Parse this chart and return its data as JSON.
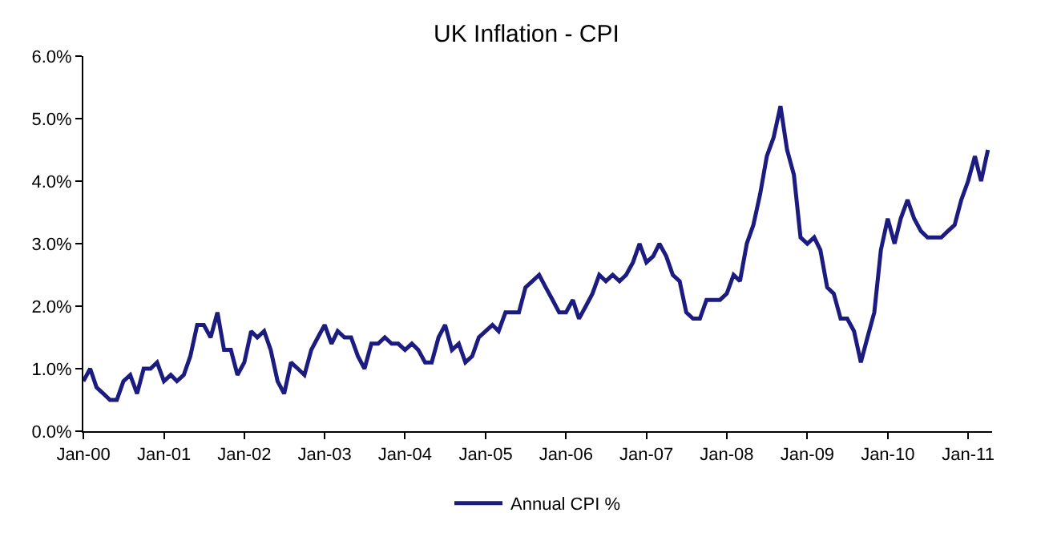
{
  "chart_data": {
    "type": "line",
    "title": "UK Inflation - CPI",
    "x": [
      "2000-01",
      "2000-02",
      "2000-03",
      "2000-04",
      "2000-05",
      "2000-06",
      "2000-07",
      "2000-08",
      "2000-09",
      "2000-10",
      "2000-11",
      "2000-12",
      "2001-01",
      "2001-02",
      "2001-03",
      "2001-04",
      "2001-05",
      "2001-06",
      "2001-07",
      "2001-08",
      "2001-09",
      "2001-10",
      "2001-11",
      "2001-12",
      "2002-01",
      "2002-02",
      "2002-03",
      "2002-04",
      "2002-05",
      "2002-06",
      "2002-07",
      "2002-08",
      "2002-09",
      "2002-10",
      "2002-11",
      "2002-12",
      "2003-01",
      "2003-02",
      "2003-03",
      "2003-04",
      "2003-05",
      "2003-06",
      "2003-07",
      "2003-08",
      "2003-09",
      "2003-10",
      "2003-11",
      "2003-12",
      "2004-01",
      "2004-02",
      "2004-03",
      "2004-04",
      "2004-05",
      "2004-06",
      "2004-07",
      "2004-08",
      "2004-09",
      "2004-10",
      "2004-11",
      "2004-12",
      "2005-01",
      "2005-02",
      "2005-03",
      "2005-04",
      "2005-05",
      "2005-06",
      "2005-07",
      "2005-08",
      "2005-09",
      "2005-10",
      "2005-11",
      "2005-12",
      "2006-01",
      "2006-02",
      "2006-03",
      "2006-04",
      "2006-05",
      "2006-06",
      "2006-07",
      "2006-08",
      "2006-09",
      "2006-10",
      "2006-11",
      "2006-12",
      "2007-01",
      "2007-02",
      "2007-03",
      "2007-04",
      "2007-05",
      "2007-06",
      "2007-07",
      "2007-08",
      "2007-09",
      "2007-10",
      "2007-11",
      "2007-12",
      "2008-01",
      "2008-02",
      "2008-03",
      "2008-04",
      "2008-05",
      "2008-06",
      "2008-07",
      "2008-08",
      "2008-09",
      "2008-10",
      "2008-11",
      "2008-12",
      "2009-01",
      "2009-02",
      "2009-03",
      "2009-04",
      "2009-05",
      "2009-06",
      "2009-07",
      "2009-08",
      "2009-09",
      "2009-10",
      "2009-11",
      "2009-12",
      "2010-01",
      "2010-02",
      "2010-03",
      "2010-04",
      "2010-05",
      "2010-06",
      "2010-07",
      "2010-08",
      "2010-09",
      "2010-10",
      "2010-11",
      "2010-12",
      "2011-01",
      "2011-02",
      "2011-03",
      "2011-04"
    ],
    "series": [
      {
        "name": "Annual CPI %",
        "color": "#1c1c80",
        "values": [
          0.8,
          1.0,
          0.7,
          0.6,
          0.5,
          0.5,
          0.8,
          0.9,
          0.6,
          1.0,
          1.0,
          1.1,
          0.8,
          0.9,
          0.8,
          0.9,
          1.2,
          1.7,
          1.7,
          1.5,
          1.9,
          1.3,
          1.3,
          0.9,
          1.1,
          1.6,
          1.5,
          1.6,
          1.3,
          0.8,
          0.6,
          1.1,
          1.0,
          0.9,
          1.3,
          1.5,
          1.7,
          1.4,
          1.6,
          1.5,
          1.5,
          1.2,
          1.0,
          1.4,
          1.4,
          1.5,
          1.4,
          1.4,
          1.3,
          1.4,
          1.3,
          1.1,
          1.1,
          1.5,
          1.7,
          1.3,
          1.4,
          1.1,
          1.2,
          1.5,
          1.6,
          1.7,
          1.6,
          1.9,
          1.9,
          1.9,
          2.3,
          2.4,
          2.5,
          2.3,
          2.1,
          1.9,
          1.9,
          2.1,
          1.8,
          2.0,
          2.2,
          2.5,
          2.4,
          2.5,
          2.4,
          2.5,
          2.7,
          3.0,
          2.7,
          2.8,
          3.0,
          2.8,
          2.5,
          2.4,
          1.9,
          1.8,
          1.8,
          2.1,
          2.1,
          2.1,
          2.2,
          2.5,
          2.4,
          3.0,
          3.3,
          3.8,
          4.4,
          4.7,
          5.2,
          4.5,
          4.1,
          3.1,
          3.0,
          3.1,
          2.9,
          2.3,
          2.2,
          1.8,
          1.8,
          1.6,
          1.1,
          1.5,
          1.9,
          2.9,
          3.4,
          3.0,
          3.4,
          3.7,
          3.4,
          3.2,
          3.1,
          3.1,
          3.1,
          3.2,
          3.3,
          3.7,
          4.0,
          4.4,
          4.0,
          4.5
        ]
      }
    ],
    "xlim": [
      "2000-01-01",
      "2011-04-20"
    ],
    "xticks": [
      {
        "value": "2000-01",
        "label": "Jan-00"
      },
      {
        "value": "2001-01",
        "label": "Jan-01"
      },
      {
        "value": "2002-01",
        "label": "Jan-02"
      },
      {
        "value": "2003-01",
        "label": "Jan-03"
      },
      {
        "value": "2004-01",
        "label": "Jan-04"
      },
      {
        "value": "2005-01",
        "label": "Jan-05"
      },
      {
        "value": "2006-01",
        "label": "Jan-06"
      },
      {
        "value": "2007-01",
        "label": "Jan-07"
      },
      {
        "value": "2008-01",
        "label": "Jan-08"
      },
      {
        "value": "2009-01",
        "label": "Jan-09"
      },
      {
        "value": "2010-01",
        "label": "Jan-10"
      },
      {
        "value": "2011-01",
        "label": "Jan-11"
      }
    ],
    "ylim": [
      0,
      6
    ],
    "yticks": [
      {
        "value": 0,
        "label": "0.0%"
      },
      {
        "value": 1,
        "label": "1.0%"
      },
      {
        "value": 2,
        "label": "2.0%"
      },
      {
        "value": 3,
        "label": "3.0%"
      },
      {
        "value": 4,
        "label": "4.0%"
      },
      {
        "value": 5,
        "label": "5.0%"
      },
      {
        "value": 6,
        "label": "6.0%"
      }
    ],
    "grid": false,
    "legend": "bottom",
    "marker": "none",
    "line_style": "solid"
  }
}
